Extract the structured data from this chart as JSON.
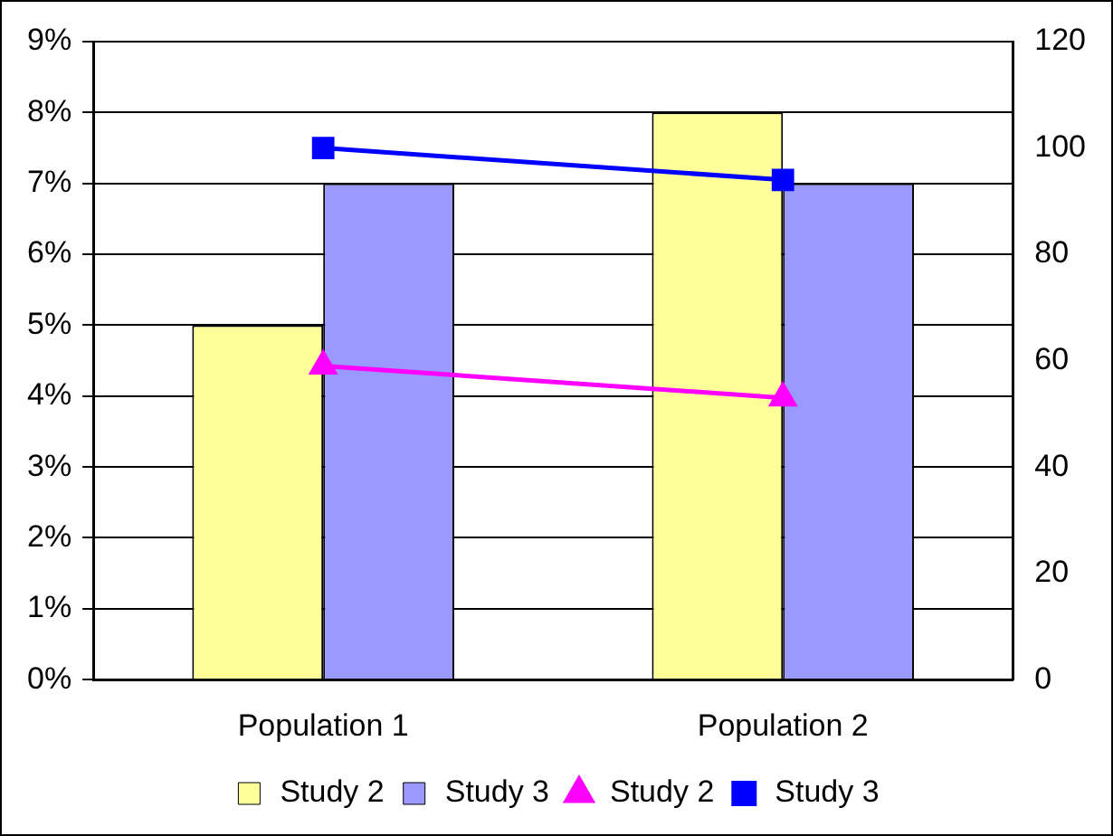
{
  "chart_data": {
    "type": "bar",
    "categories": [
      "Population 1",
      "Population 2"
    ],
    "series": [
      {
        "name": "Study 2",
        "color": "#ffff99",
        "values": [
          5,
          8
        ]
      },
      {
        "name": "Study 3",
        "color": "#9999ff",
        "values": [
          7,
          7
        ]
      },
      {
        "name": "Study 2",
        "type": "line",
        "axis": "y2",
        "marker": "triangle",
        "color": "#ff00ff",
        "values": [
          59,
          53
        ]
      },
      {
        "name": "Study 3",
        "type": "line",
        "axis": "y2",
        "marker": "square",
        "color": "#0000ff",
        "values": [
          100,
          94
        ]
      }
    ],
    "ylim": [
      0,
      9
    ],
    "yticks": [
      {
        "value": 0,
        "label": "0%"
      },
      {
        "value": 1,
        "label": "1%"
      },
      {
        "value": 2,
        "label": "2%"
      },
      {
        "value": 3,
        "label": "3%"
      },
      {
        "value": 4,
        "label": "4%"
      },
      {
        "value": 5,
        "label": "5%"
      },
      {
        "value": 6,
        "label": "6%"
      },
      {
        "value": 7,
        "label": "7%"
      },
      {
        "value": 8,
        "label": "8%"
      },
      {
        "value": 9,
        "label": "9%"
      }
    ],
    "y2lim": [
      0,
      120
    ],
    "y2ticks": [
      0,
      20,
      40,
      60,
      80,
      100,
      120
    ],
    "grid": "y",
    "legend": "bottom"
  }
}
